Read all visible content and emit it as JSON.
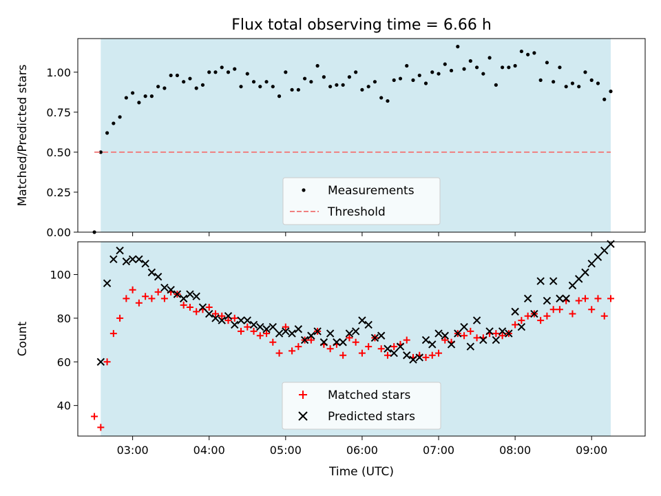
{
  "chart_data": [
    {
      "type": "scatter",
      "title": "Flux total observing time = 6.66 h",
      "xlabel": "",
      "ylabel": "Matched/Predicted stars",
      "xlim": [
        "02:17",
        "09:42"
      ],
      "ylim": [
        0,
        1.21
      ],
      "yticks": [
        "0.00",
        "0.25",
        "0.50",
        "0.75",
        "1.00"
      ],
      "grid": false,
      "legend_position": "bottom-center",
      "shaded_interval": [
        "02:35",
        "09:15"
      ],
      "shade_color": "#add8e6",
      "series": [
        {
          "name": "Measurements",
          "color": "#000000",
          "marker": "dot",
          "x": [
            "02:30",
            "02:35",
            "02:40",
            "02:45",
            "02:50",
            "02:55",
            "03:00",
            "03:05",
            "03:10",
            "03:15",
            "03:20",
            "03:25",
            "03:30",
            "03:35",
            "03:40",
            "03:45",
            "03:50",
            "03:55",
            "04:00",
            "04:05",
            "04:10",
            "04:15",
            "04:20",
            "04:25",
            "04:30",
            "04:35",
            "04:40",
            "04:45",
            "04:50",
            "04:55",
            "05:00",
            "05:05",
            "05:10",
            "05:15",
            "05:20",
            "05:25",
            "05:30",
            "05:35",
            "05:40",
            "05:45",
            "05:50",
            "05:55",
            "06:00",
            "06:05",
            "06:10",
            "06:15",
            "06:20",
            "06:25",
            "06:30",
            "06:35",
            "06:40",
            "06:45",
            "06:50",
            "06:55",
            "07:00",
            "07:05",
            "07:10",
            "07:15",
            "07:20",
            "07:25",
            "07:30",
            "07:35",
            "07:40",
            "07:45",
            "07:50",
            "07:55",
            "08:00",
            "08:05",
            "08:10",
            "08:15",
            "08:20",
            "08:25",
            "08:30",
            "08:35",
            "08:40",
            "08:45",
            "08:50",
            "08:55",
            "09:00",
            "09:05",
            "09:10",
            "09:15"
          ],
          "y": [
            0.0,
            0.5,
            0.62,
            0.68,
            0.72,
            0.84,
            0.87,
            0.81,
            0.85,
            0.85,
            0.91,
            0.9,
            0.98,
            0.98,
            0.94,
            0.96,
            0.9,
            0.92,
            1.0,
            1.0,
            1.03,
            1.0,
            1.02,
            0.91,
            0.99,
            0.94,
            0.91,
            0.94,
            0.91,
            0.85,
            1.0,
            0.89,
            0.89,
            0.96,
            0.94,
            1.04,
            0.97,
            0.91,
            0.92,
            0.92,
            0.97,
            1.0,
            0.89,
            0.91,
            0.94,
            0.84,
            0.82,
            0.95,
            0.96,
            1.04,
            0.95,
            0.98,
            0.93,
            1.0,
            0.99,
            1.05,
            1.01,
            1.16,
            1.02,
            1.07,
            1.03,
            0.99,
            1.09,
            0.92,
            1.03,
            1.03,
            1.04,
            1.13,
            1.11,
            1.12,
            0.95,
            1.06,
            0.94,
            1.03,
            0.91,
            0.93,
            0.91,
            1.0,
            0.95,
            0.93,
            0.83,
            0.88
          ]
        },
        {
          "name": "Threshold",
          "color": "#f08080",
          "style": "dashed",
          "x": [
            "02:30",
            "09:15"
          ],
          "y": [
            0.5,
            0.5
          ]
        }
      ]
    },
    {
      "type": "scatter",
      "title": "",
      "xlabel": "Time (UTC)",
      "ylabel": "Count",
      "xlim": [
        "02:17",
        "09:42"
      ],
      "ylim": [
        26,
        115
      ],
      "yticks": [
        "40",
        "60",
        "80",
        "100"
      ],
      "xticks": [
        "03:00",
        "04:00",
        "05:00",
        "06:00",
        "07:00",
        "08:00",
        "09:00"
      ],
      "grid": false,
      "legend_position": "bottom-center",
      "shaded_interval": [
        "02:35",
        "09:15"
      ],
      "shade_color": "#add8e6",
      "series": [
        {
          "name": "Matched stars",
          "color": "#ff0000",
          "marker": "plus",
          "x": [
            "02:30",
            "02:35",
            "02:40",
            "02:45",
            "02:50",
            "02:55",
            "03:00",
            "03:05",
            "03:10",
            "03:15",
            "03:20",
            "03:25",
            "03:30",
            "03:35",
            "03:40",
            "03:45",
            "03:50",
            "03:55",
            "04:00",
            "04:05",
            "04:10",
            "04:15",
            "04:20",
            "04:25",
            "04:30",
            "04:35",
            "04:40",
            "04:45",
            "04:50",
            "04:55",
            "05:00",
            "05:05",
            "05:10",
            "05:15",
            "05:20",
            "05:25",
            "05:30",
            "05:35",
            "05:40",
            "05:45",
            "05:50",
            "05:55",
            "06:00",
            "06:05",
            "06:10",
            "06:15",
            "06:20",
            "06:25",
            "06:30",
            "06:35",
            "06:40",
            "06:45",
            "06:50",
            "06:55",
            "07:00",
            "07:05",
            "07:10",
            "07:15",
            "07:20",
            "07:25",
            "07:30",
            "07:35",
            "07:40",
            "07:45",
            "07:50",
            "07:55",
            "08:00",
            "08:05",
            "08:10",
            "08:15",
            "08:20",
            "08:25",
            "08:30",
            "08:35",
            "08:40",
            "08:45",
            "08:50",
            "08:55",
            "09:00",
            "09:05",
            "09:10",
            "09:15"
          ],
          "y": [
            35,
            30,
            60,
            73,
            80,
            89,
            93,
            87,
            90,
            89,
            92,
            89,
            92,
            91,
            86,
            85,
            83,
            84,
            85,
            82,
            81,
            79,
            80,
            74,
            76,
            74,
            72,
            73,
            69,
            64,
            76,
            65,
            67,
            70,
            70,
            74,
            68,
            66,
            68,
            63,
            71,
            69,
            64,
            67,
            71,
            66,
            63,
            67,
            68,
            70,
            62,
            63,
            62,
            63,
            64,
            70,
            69,
            73,
            72,
            74,
            71,
            71,
            73,
            73,
            72,
            73,
            77,
            79,
            81,
            82,
            79,
            81,
            84,
            84,
            88,
            82,
            88,
            89,
            84,
            89,
            81,
            89
          ]
        },
        {
          "name": "Predicted stars",
          "color": "#000000",
          "marker": "x",
          "x": [
            "02:35",
            "02:40",
            "02:45",
            "02:50",
            "02:55",
            "03:00",
            "03:05",
            "03:10",
            "03:15",
            "03:20",
            "03:25",
            "03:30",
            "03:35",
            "03:40",
            "03:45",
            "03:50",
            "03:55",
            "04:00",
            "04:05",
            "04:10",
            "04:15",
            "04:20",
            "04:25",
            "04:30",
            "04:35",
            "04:40",
            "04:45",
            "04:50",
            "04:55",
            "05:00",
            "05:05",
            "05:10",
            "05:15",
            "05:20",
            "05:25",
            "05:30",
            "05:35",
            "05:40",
            "05:45",
            "05:50",
            "05:55",
            "06:00",
            "06:05",
            "06:10",
            "06:15",
            "06:20",
            "06:25",
            "06:30",
            "06:35",
            "06:40",
            "06:45",
            "06:50",
            "06:55",
            "07:00",
            "07:05",
            "07:10",
            "07:15",
            "07:20",
            "07:25",
            "07:30",
            "07:35",
            "07:40",
            "07:45",
            "07:50",
            "07:55",
            "08:00",
            "08:05",
            "08:10",
            "08:15",
            "08:20",
            "08:25",
            "08:30",
            "08:35",
            "08:40",
            "08:45",
            "08:50",
            "08:55",
            "09:00",
            "09:05",
            "09:10",
            "09:15"
          ],
          "y": [
            60,
            96,
            107,
            111,
            106,
            107,
            107,
            105,
            101,
            99,
            94,
            93,
            91,
            89,
            91,
            90,
            85,
            82,
            80,
            79,
            81,
            77,
            79,
            79,
            77,
            76,
            75,
            76,
            73,
            74,
            73,
            75,
            70,
            72,
            74,
            69,
            73,
            69,
            69,
            73,
            74,
            79,
            77,
            71,
            72,
            66,
            64,
            67,
            63,
            61,
            62,
            70,
            68,
            73,
            72,
            68,
            73,
            76,
            67,
            79,
            70,
            74,
            70,
            74,
            73,
            83,
            76,
            89,
            82,
            97,
            88,
            97,
            89,
            89,
            95,
            98,
            101,
            105,
            108,
            111,
            114
          ]
        }
      ]
    }
  ],
  "legend1": {
    "measurements": "Measurements",
    "threshold": "Threshold"
  },
  "legend2": {
    "matched": "Matched stars",
    "predicted": "Predicted stars"
  },
  "title": "Flux total observing time = 6.66 h",
  "axes1": {
    "ylabel": "Matched/Predicted stars"
  },
  "axes2": {
    "ylabel": "Count",
    "xlabel": "Time (UTC)"
  }
}
